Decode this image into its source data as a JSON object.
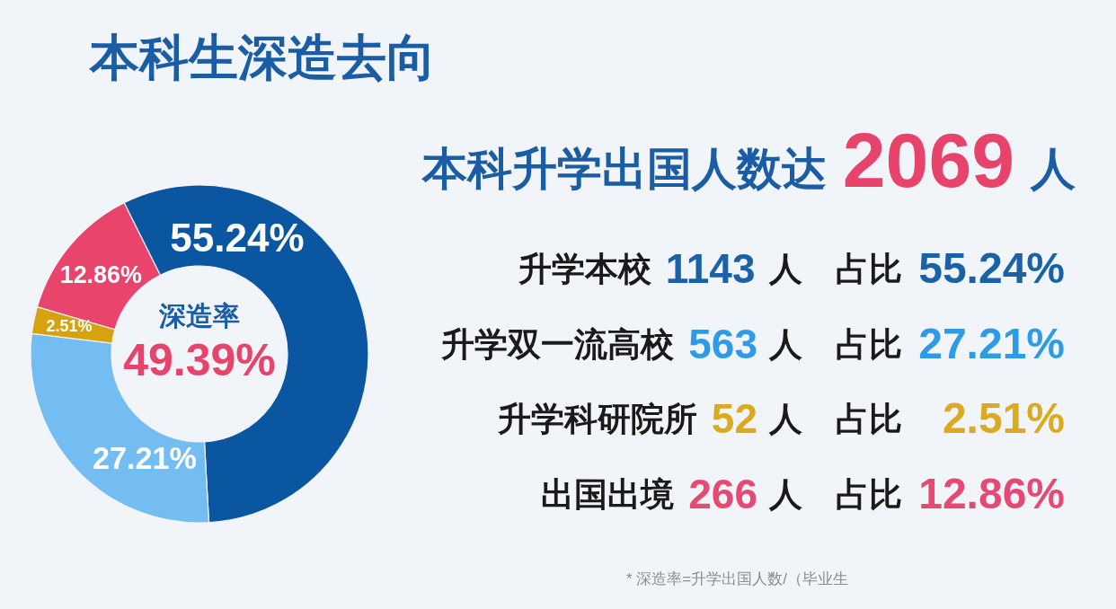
{
  "chart_data": [
    {
      "type": "donut",
      "title": "本科生深造去向",
      "categories": [
        null,
        null,
        null,
        null
      ],
      "values": [
        55.24,
        27.21,
        2.51,
        12.86
      ],
      "value_labels": [
        "55.24%",
        "27.21%",
        "2.51%",
        "12.86%"
      ],
      "colors": [
        "#0b56a0",
        "#74bdf3",
        "#d6a20e",
        "#e9446c"
      ],
      "annotations": [
        "深造率",
        "49.39%",
        "* 深造率=升学出国人数/（毕业生"
      ]
    },
    {
      "type": "other",
      "title": "本科升学出国人数达 2069 人",
      "colors": [
        "#1a62a8",
        "#2d9be8",
        "#dcaa1f",
        "#e64a72"
      ],
      "annotations": [
        "升学本校 1143 人 占比 55.24%",
        "升学双一流高校 563 人 占比 27.21%",
        "升学科研院所 52 人 占比 2.51%",
        "出国出境 266 人 占比 12.86%"
      ]
    }
  ]
}
